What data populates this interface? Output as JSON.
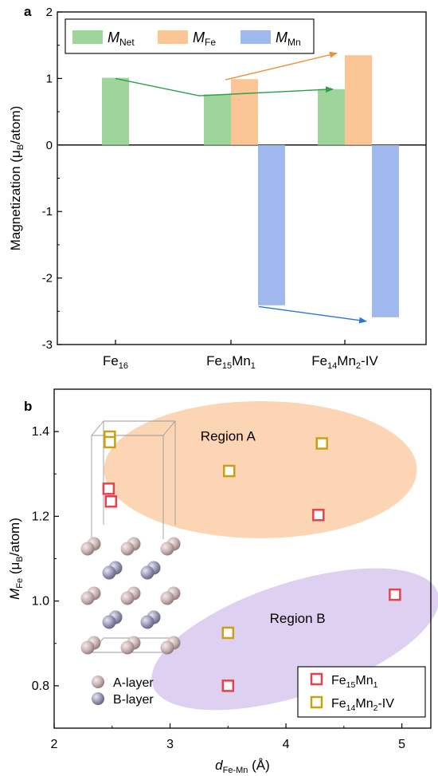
{
  "panels": {
    "a": {
      "label": "a"
    },
    "b": {
      "label": "b"
    }
  },
  "chart_data": [
    {
      "type": "bar",
      "panel": "a",
      "ylabel": {
        "main": "Magnetization (μ",
        "sub": "B",
        "tail": "/atom)"
      },
      "ylim": [
        -3,
        2
      ],
      "yticks": [
        -3,
        -2,
        -1,
        0,
        1,
        2
      ],
      "categories": [
        {
          "main": "Fe",
          "sub": "16",
          "rest": []
        },
        {
          "main": "Fe",
          "sub": "15",
          "rest": [
            {
              "t": "Mn",
              "s": "1"
            }
          ]
        },
        {
          "main": "Fe",
          "sub": "14",
          "rest": [
            {
              "t": "Mn",
              "s": "2"
            },
            {
              "t": "-IV",
              "s": ""
            }
          ]
        }
      ],
      "series": [
        {
          "name": "M",
          "name_sub": "Net",
          "color": "#9dd59b",
          "values": [
            1.01,
            0.76,
            0.84
          ]
        },
        {
          "name": "M",
          "name_sub": "Fe",
          "color": "#fbc695",
          "values": [
            null,
            0.99,
            1.35
          ]
        },
        {
          "name": "M",
          "name_sub": "Mn",
          "color": "#9fb9ef",
          "values": [
            null,
            -2.41,
            -2.59
          ]
        }
      ],
      "legend_position": "top",
      "trend_arrows": [
        {
          "series": "M_Net",
          "color": "#2ca04a",
          "points": [
            [
              0,
              1.0
            ],
            [
              1,
              0.74
            ],
            [
              2,
              0.84
            ]
          ]
        },
        {
          "series": "M_Fe",
          "color": "#f0913a",
          "points": [
            [
              1,
              0.98
            ],
            [
              2,
              1.38
            ]
          ]
        },
        {
          "series": "M_Mn",
          "color": "#2b76d2",
          "points": [
            [
              1,
              -2.43
            ],
            [
              2,
              -2.65
            ]
          ]
        }
      ]
    },
    {
      "type": "scatter",
      "panel": "b",
      "xlabel": {
        "main": "d",
        "sub": "Fe-Mn",
        "tail": " (Å)"
      },
      "ylabel": {
        "main": "M",
        "sub": "Fe",
        "tail": " (μ",
        "sub2": "B",
        "tail2": "/atom)"
      },
      "xlim": [
        2,
        5.25
      ],
      "ylim": [
        0.7,
        1.5
      ],
      "xticks": [
        2,
        3,
        4,
        5
      ],
      "yticks": [
        0.8,
        1.0,
        1.2,
        1.4
      ],
      "series": [
        {
          "name": "Fe",
          "name_sub": "15",
          "name_rest": [
            {
              "t": "Mn",
              "s": "1"
            }
          ],
          "color": "#e8414a",
          "points": [
            [
              2.47,
              1.265
            ],
            [
              2.49,
              1.235
            ],
            [
              4.28,
              1.203
            ],
            [
              4.94,
              1.015
            ],
            [
              3.5,
              0.8
            ]
          ]
        },
        {
          "name": "Fe",
          "name_sub": "14",
          "name_rest": [
            {
              "t": "Mn",
              "s": "2"
            },
            {
              "t": "-IV",
              "s": ""
            }
          ],
          "color": "#c9a012",
          "points": [
            [
              2.48,
              1.388
            ],
            [
              2.48,
              1.375
            ],
            [
              3.51,
              1.307
            ],
            [
              4.31,
              1.372
            ],
            [
              3.5,
              0.925
            ]
          ]
        }
      ],
      "regions": [
        {
          "label": "Region A",
          "color": "#fbd5b4",
          "cx": 3.78,
          "cy": 1.31,
          "rx": 1.72,
          "ry": 0.165,
          "rot": 0,
          "label_x": 3.5,
          "label_y": 1.39
        },
        {
          "label": "Region B",
          "color": "#ddd0f0",
          "cx": 4.08,
          "cy": 0.91,
          "rx": 1.82,
          "ry": 0.18,
          "rot": -18,
          "label_x": 4.1,
          "label_y": 0.96
        }
      ],
      "legend_position": "bottom-right",
      "inset": {
        "legend": [
          {
            "label": "A-layer",
            "color": "#c9b4b4"
          },
          {
            "label": "B-layer",
            "color": "#9b9bb7"
          }
        ]
      }
    }
  ]
}
